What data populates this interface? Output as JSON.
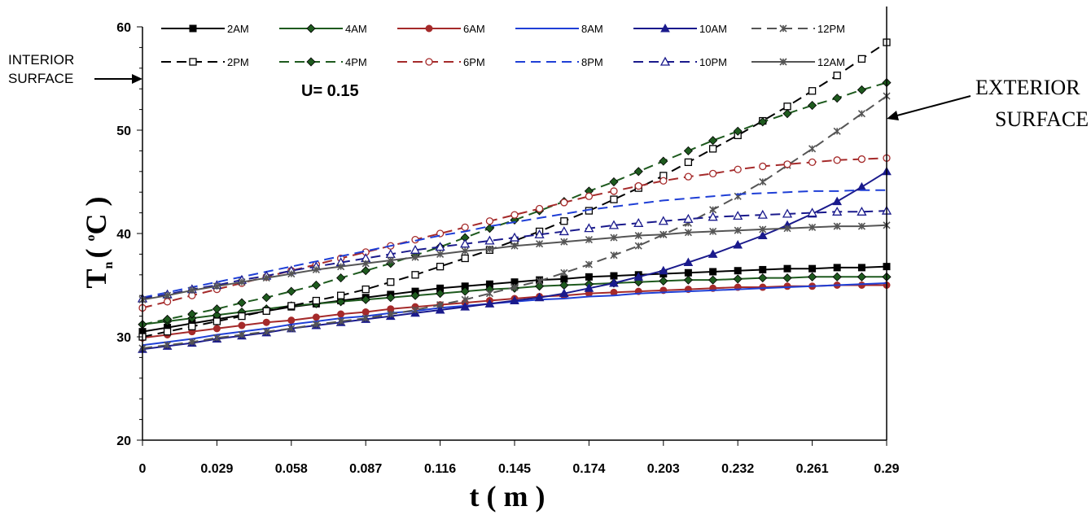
{
  "chart_data": {
    "type": "line",
    "title": "",
    "xlabel": "t ( m )",
    "ylabel": {
      "main": "T",
      "sub": "n",
      "rest": "( ",
      "sup": "o",
      "unit": "C )"
    },
    "x": [
      0,
      0.0097,
      0.0193,
      0.029,
      0.0387,
      0.0483,
      0.058,
      0.0677,
      0.0773,
      0.087,
      0.0967,
      0.1063,
      0.116,
      0.1257,
      0.1353,
      0.145,
      0.1547,
      0.1643,
      0.174,
      0.1837,
      0.1933,
      0.203,
      0.2127,
      0.2223,
      0.232,
      0.2417,
      0.2513,
      0.261,
      0.2707,
      0.2803,
      0.29
    ],
    "xticks": [
      "0",
      "0.029",
      "0.058",
      "0.087",
      "0.116",
      "0.145",
      "0.174",
      "0.203",
      "0.232",
      "0.261",
      "0.29"
    ],
    "yticks": [
      "20",
      "30",
      "40",
      "50",
      "60"
    ],
    "xlim": [
      0,
      0.29
    ],
    "ylim": [
      20,
      60
    ],
    "legend_position": "top",
    "series": [
      {
        "name": "2AM",
        "color": "#000000",
        "dash": "solid",
        "marker": "square-filled",
        "values": [
          30.5,
          30.9,
          31.3,
          31.7,
          32.1,
          32.5,
          32.9,
          33.2,
          33.5,
          33.8,
          34.1,
          34.4,
          34.7,
          34.9,
          35.1,
          35.3,
          35.5,
          35.6,
          35.8,
          35.9,
          36.0,
          36.1,
          36.2,
          36.3,
          36.4,
          36.5,
          36.6,
          36.6,
          36.7,
          36.7,
          36.8
        ]
      },
      {
        "name": "4AM",
        "color": "#1e5a1e",
        "dash": "solid",
        "marker": "diamond-filled",
        "values": [
          31.2,
          31.5,
          31.8,
          32.1,
          32.4,
          32.7,
          33.0,
          33.2,
          33.4,
          33.6,
          33.8,
          34.0,
          34.2,
          34.4,
          34.6,
          34.7,
          34.9,
          35.0,
          35.1,
          35.2,
          35.3,
          35.4,
          35.5,
          35.5,
          35.6,
          35.7,
          35.7,
          35.8,
          35.8,
          35.8,
          35.8
        ]
      },
      {
        "name": "6AM",
        "color": "#a52a2a",
        "dash": "solid",
        "marker": "circle-filled",
        "values": [
          29.9,
          30.2,
          30.5,
          30.8,
          31.1,
          31.4,
          31.6,
          31.9,
          32.2,
          32.4,
          32.7,
          32.9,
          33.1,
          33.3,
          33.5,
          33.7,
          33.9,
          34.0,
          34.2,
          34.3,
          34.4,
          34.5,
          34.6,
          34.7,
          34.8,
          34.8,
          34.9,
          34.9,
          35.0,
          35.0,
          35.0
        ]
      },
      {
        "name": "8AM",
        "color": "#1f3fd6",
        "dash": "solid",
        "marker": "none",
        "values": [
          29.2,
          29.5,
          29.8,
          30.2,
          30.5,
          30.8,
          31.2,
          31.5,
          31.8,
          32.0,
          32.3,
          32.5,
          32.8,
          33.0,
          33.2,
          33.4,
          33.6,
          33.7,
          33.9,
          34.0,
          34.2,
          34.3,
          34.4,
          34.5,
          34.6,
          34.7,
          34.8,
          34.9,
          35.0,
          35.1,
          35.2
        ]
      },
      {
        "name": "10AM",
        "color": "#1a1a8c",
        "dash": "solid",
        "marker": "triangle-filled",
        "values": [
          28.8,
          29.1,
          29.4,
          29.8,
          30.1,
          30.4,
          30.8,
          31.1,
          31.4,
          31.7,
          32.0,
          32.3,
          32.6,
          32.9,
          33.2,
          33.5,
          33.8,
          34.2,
          34.7,
          35.2,
          35.8,
          36.4,
          37.2,
          38.0,
          38.9,
          39.8,
          40.8,
          41.9,
          43.1,
          44.5,
          46.0
        ]
      },
      {
        "name": "12PM",
        "color": "#555555",
        "dash": "dashed",
        "marker": "asterisk",
        "values": [
          28.9,
          29.2,
          29.5,
          29.9,
          30.2,
          30.5,
          30.8,
          31.2,
          31.5,
          31.8,
          32.2,
          32.6,
          33.1,
          33.6,
          34.2,
          34.8,
          35.4,
          36.2,
          37.0,
          37.9,
          38.8,
          39.9,
          41.0,
          42.3,
          43.6,
          45.0,
          46.6,
          48.2,
          49.9,
          51.6,
          53.3
        ]
      },
      {
        "name": "2PM",
        "color": "#000000",
        "dash": "dashed",
        "marker": "square-open",
        "values": [
          30.0,
          30.5,
          31.0,
          31.5,
          32.0,
          32.5,
          33.0,
          33.5,
          34.0,
          34.6,
          35.3,
          36.0,
          36.8,
          37.6,
          38.4,
          39.3,
          40.2,
          41.2,
          42.2,
          43.3,
          44.4,
          45.6,
          46.9,
          48.2,
          49.5,
          50.9,
          52.3,
          53.8,
          55.3,
          56.9,
          58.5
        ]
      },
      {
        "name": "4PM",
        "color": "#1e5a1e",
        "dash": "dashed",
        "marker": "diamond-filled",
        "values": [
          31.2,
          31.7,
          32.2,
          32.7,
          33.3,
          33.8,
          34.4,
          35.0,
          35.7,
          36.4,
          37.1,
          37.9,
          38.7,
          39.6,
          40.5,
          41.3,
          42.2,
          43.1,
          44.1,
          45.0,
          46.0,
          47.0,
          48.0,
          49.0,
          49.9,
          50.8,
          51.6,
          52.4,
          53.1,
          53.9,
          54.6
        ]
      },
      {
        "name": "6PM",
        "color": "#a52a2a",
        "dash": "dashed",
        "marker": "circle-open",
        "values": [
          32.8,
          33.4,
          34.0,
          34.6,
          35.2,
          35.8,
          36.4,
          37.0,
          37.6,
          38.2,
          38.8,
          39.4,
          40.0,
          40.6,
          41.2,
          41.8,
          42.4,
          43.0,
          43.6,
          44.1,
          44.6,
          45.1,
          45.5,
          45.8,
          46.2,
          46.5,
          46.7,
          46.9,
          47.1,
          47.2,
          47.3
        ]
      },
      {
        "name": "8PM",
        "color": "#1f3fd6",
        "dash": "dashed",
        "marker": "none",
        "values": [
          33.8,
          34.3,
          34.8,
          35.3,
          35.8,
          36.3,
          36.8,
          37.3,
          37.8,
          38.3,
          38.8,
          39.3,
          39.8,
          40.2,
          40.7,
          41.1,
          41.5,
          41.9,
          42.3,
          42.6,
          42.9,
          43.2,
          43.4,
          43.6,
          43.8,
          43.9,
          44.0,
          44.1,
          44.1,
          44.2,
          44.2
        ]
      },
      {
        "name": "10PM",
        "color": "#1a1a8c",
        "dash": "dashed",
        "marker": "triangle-open",
        "values": [
          33.7,
          34.1,
          34.6,
          35.0,
          35.5,
          35.9,
          36.4,
          36.8,
          37.2,
          37.6,
          38.0,
          38.4,
          38.7,
          39.0,
          39.3,
          39.6,
          39.9,
          40.2,
          40.5,
          40.8,
          41.0,
          41.2,
          41.4,
          41.6,
          41.7,
          41.8,
          41.9,
          42.0,
          42.1,
          42.1,
          42.2
        ]
      },
      {
        "name": "12AM",
        "color": "#555555",
        "dash": "solid",
        "marker": "asterisk",
        "values": [
          33.6,
          34.0,
          34.5,
          34.9,
          35.3,
          35.7,
          36.1,
          36.5,
          36.8,
          37.1,
          37.4,
          37.7,
          38.0,
          38.3,
          38.5,
          38.8,
          39.0,
          39.2,
          39.4,
          39.6,
          39.8,
          39.9,
          40.1,
          40.2,
          40.3,
          40.4,
          40.5,
          40.6,
          40.7,
          40.7,
          40.8
        ]
      }
    ],
    "annotations": {
      "u_value": "U= 0.15",
      "interior_line1": "INTERIOR",
      "interior_line2": "SURFACE",
      "exterior_line1": "EXTERIOR",
      "exterior_line2": "SURFACE"
    }
  }
}
